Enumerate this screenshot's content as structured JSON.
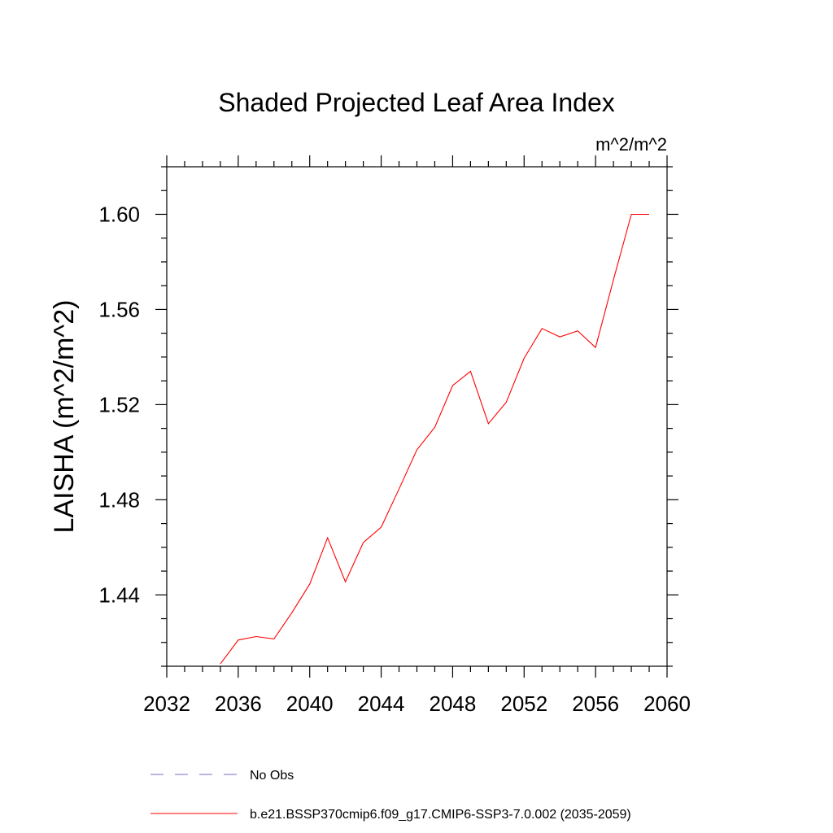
{
  "chart_data": {
    "type": "line",
    "title": "Shaded Projected Leaf Area Index",
    "units": "m^2/m^2",
    "ylabel": "LAISHA  (m^2/m^2)",
    "xlabel": "",
    "xlim": [
      2032,
      2060
    ],
    "ylim": [
      1.41,
      1.62
    ],
    "x_ticks": [
      2032,
      2036,
      2040,
      2044,
      2048,
      2052,
      2056,
      2060
    ],
    "x_tick_labels": [
      "2032",
      "2036",
      "2040",
      "2044",
      "2048",
      "2052",
      "2056",
      "2060"
    ],
    "y_ticks": [
      1.44,
      1.48,
      1.52,
      1.56,
      1.6
    ],
    "y_tick_labels": [
      "1.44",
      "1.48",
      "1.52",
      "1.56",
      "1.60"
    ],
    "grid": false,
    "legend_position": "bottom",
    "series": [
      {
        "name": "b.e21.BSSP370cmip6.f09_g17.CMIP6-SSP3-7.0.002 (2035-2059)",
        "color": "#ff0000",
        "style": "solid",
        "x": [
          2035,
          2036,
          2037,
          2038,
          2039,
          2040,
          2041,
          2042,
          2043,
          2044,
          2045,
          2046,
          2047,
          2048,
          2049,
          2050,
          2051,
          2052,
          2053,
          2054,
          2055,
          2056,
          2057,
          2058,
          2059
        ],
        "y": [
          1.411,
          1.421,
          1.4225,
          1.4215,
          1.4325,
          1.4445,
          1.464,
          1.4455,
          1.462,
          1.4685,
          1.4845,
          1.501,
          1.5105,
          1.528,
          1.534,
          1.512,
          1.521,
          1.5395,
          1.552,
          1.5485,
          1.551,
          1.544,
          1.5725,
          1.6,
          1.6
        ]
      }
    ],
    "legend": [
      {
        "label": "No Obs",
        "color": "#7b68c8",
        "style": "dashed"
      },
      {
        "label": "b.e21.BSSP370cmip6.f09_g17.CMIP6-SSP3-7.0.002 (2035-2059)",
        "color": "#ff0000",
        "style": "solid"
      }
    ]
  }
}
